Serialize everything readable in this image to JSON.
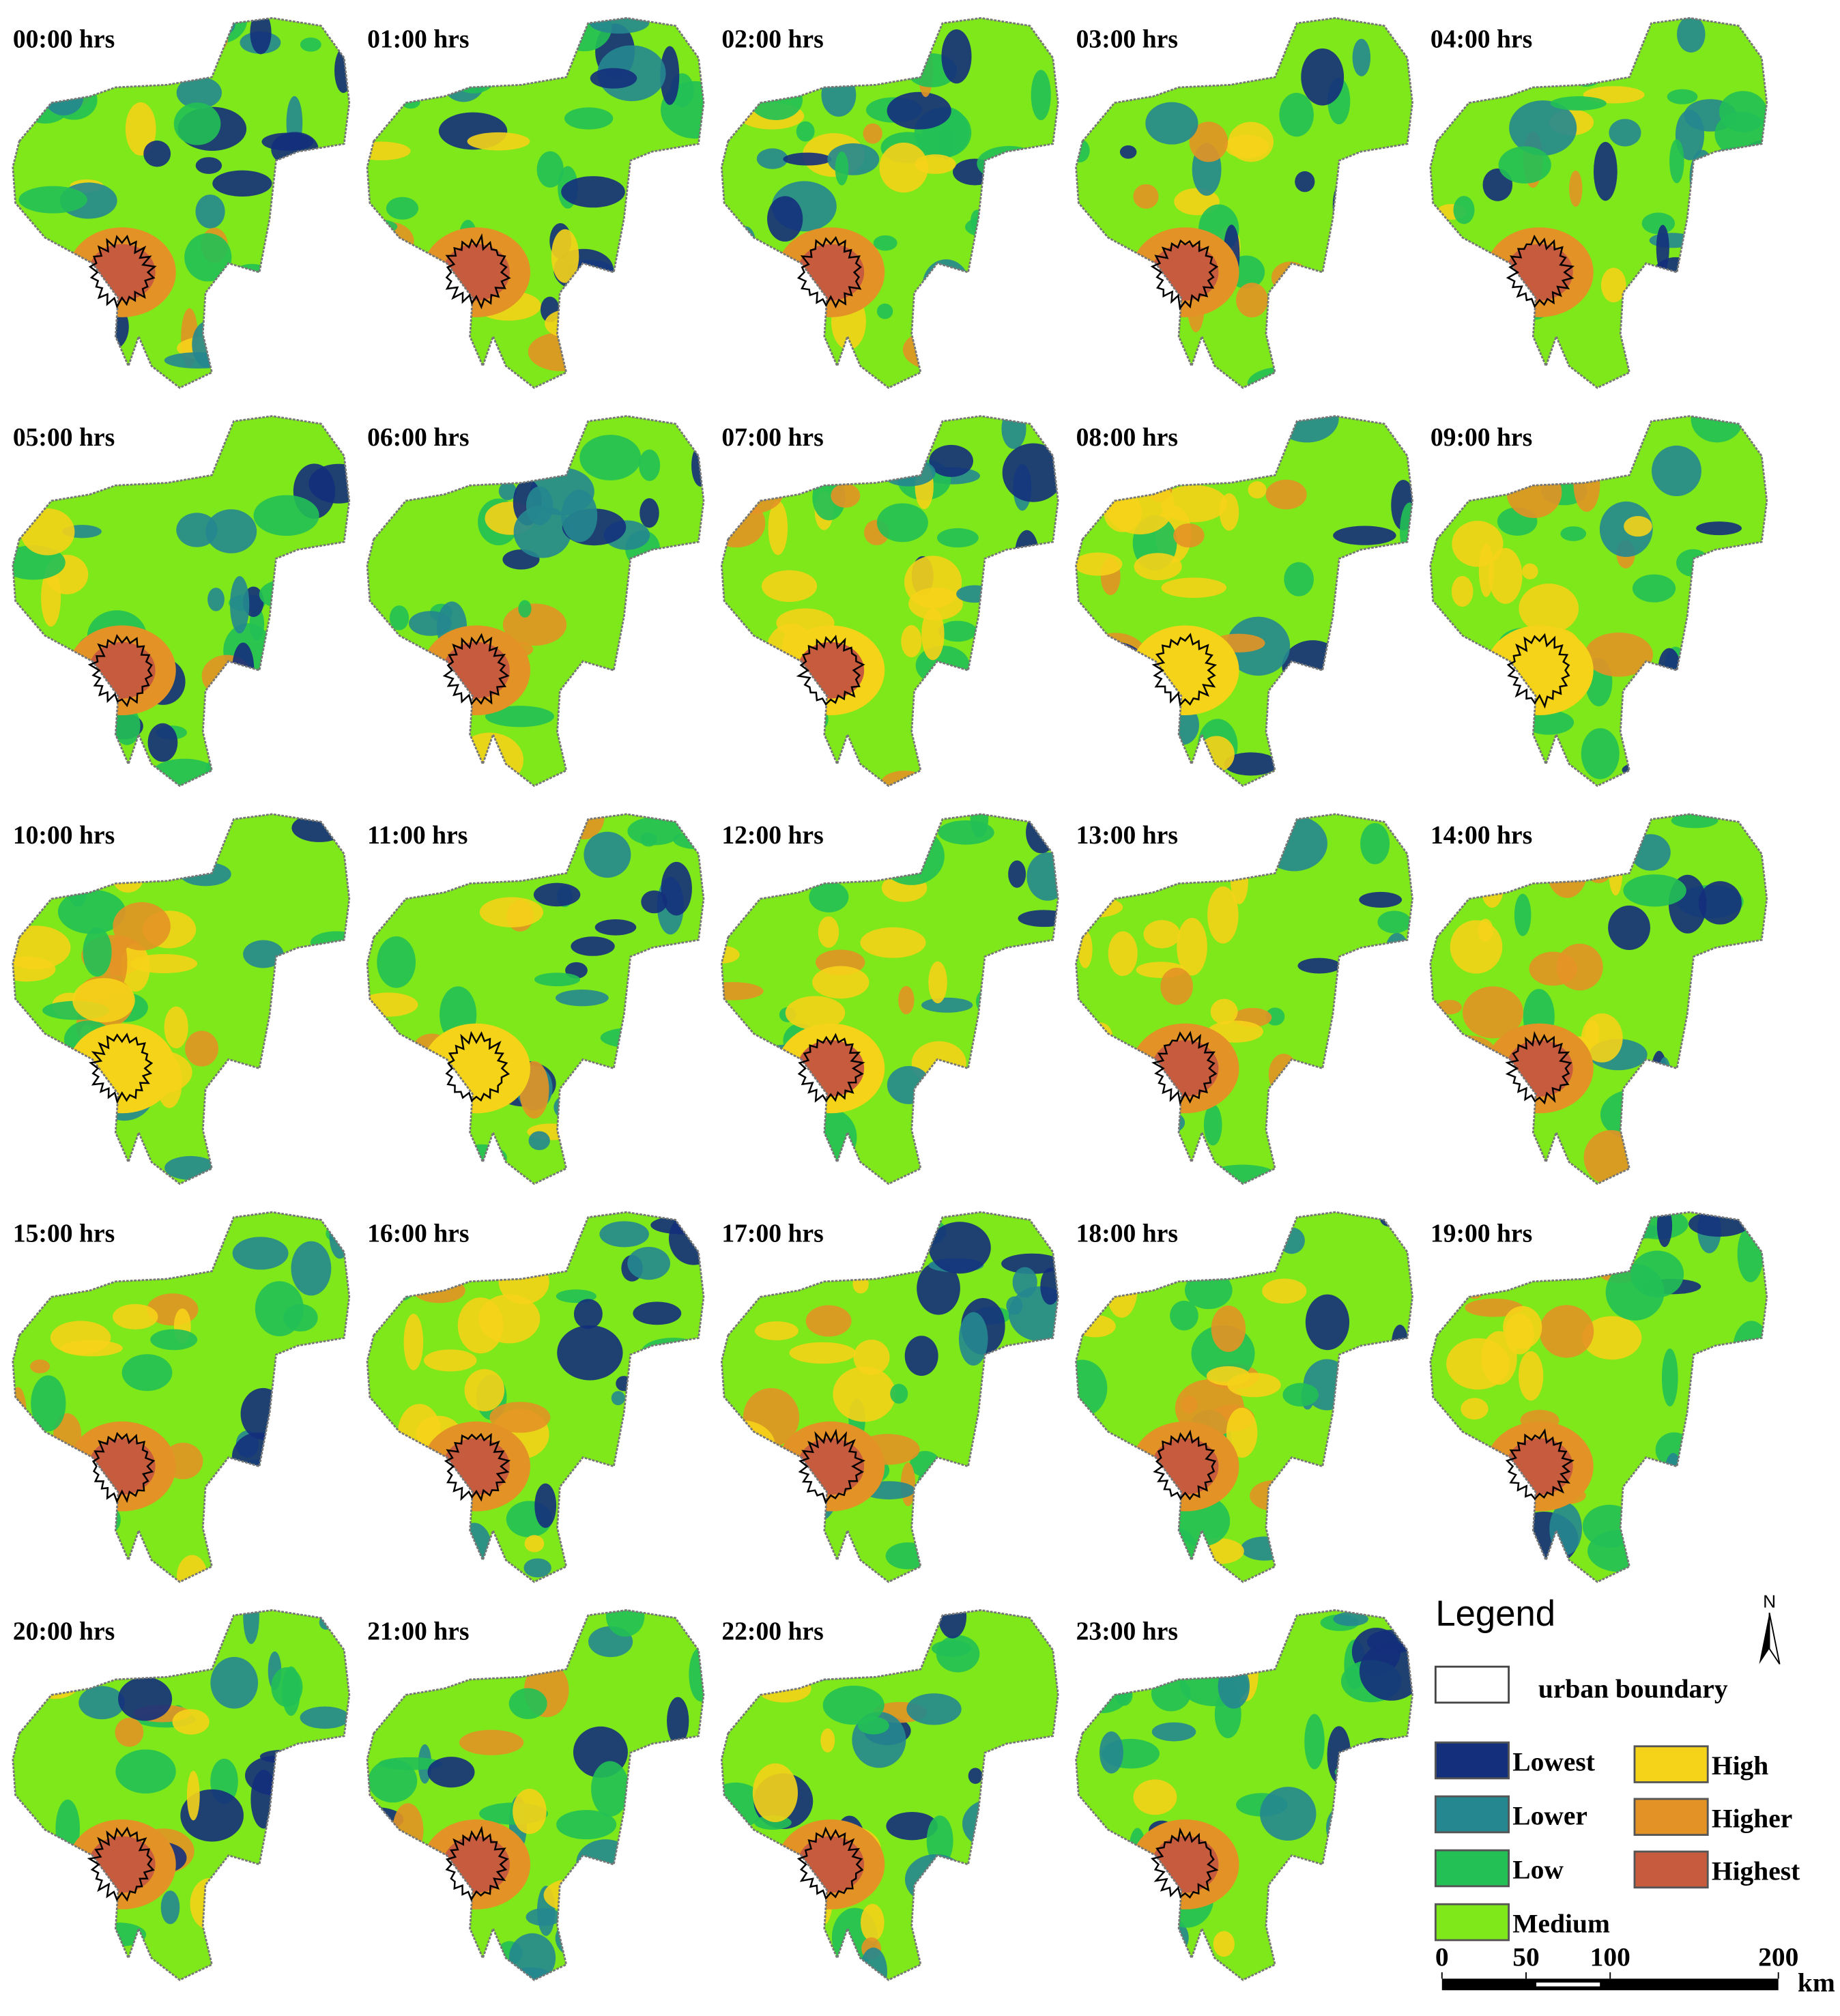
{
  "panels": [
    {
      "label": "00:00 hrs"
    },
    {
      "label": "01:00 hrs"
    },
    {
      "label": "02:00 hrs"
    },
    {
      "label": "03:00 hrs"
    },
    {
      "label": "04:00 hrs"
    },
    {
      "label": "05:00 hrs"
    },
    {
      "label": "06:00 hrs"
    },
    {
      "label": "07:00 hrs"
    },
    {
      "label": "08:00 hrs"
    },
    {
      "label": "09:00 hrs"
    },
    {
      "label": "10:00 hrs"
    },
    {
      "label": "11:00 hrs"
    },
    {
      "label": "12:00 hrs"
    },
    {
      "label": "13:00 hrs"
    },
    {
      "label": "14:00 hrs"
    },
    {
      "label": "15:00 hrs"
    },
    {
      "label": "16:00 hrs"
    },
    {
      "label": "17:00 hrs"
    },
    {
      "label": "18:00 hrs"
    },
    {
      "label": "19:00 hrs"
    },
    {
      "label": "20:00 hrs"
    },
    {
      "label": "21:00 hrs"
    },
    {
      "label": "22:00 hrs"
    },
    {
      "label": "23:00 hrs"
    }
  ],
  "legend": {
    "title": "Legend",
    "boundary_label": "urban boundary",
    "classes": [
      {
        "name": "Lowest",
        "color": "#142f7c"
      },
      {
        "name": "Lower",
        "color": "#25878f"
      },
      {
        "name": "Low",
        "color": "#22c055"
      },
      {
        "name": "Medium",
        "color": "#7ee81a"
      },
      {
        "name": "High",
        "color": "#f5d318"
      },
      {
        "name": "Higher",
        "color": "#e39325"
      },
      {
        "name": "Highest",
        "color": "#c75b3d"
      }
    ]
  },
  "scale_bar": {
    "ticks": [
      0,
      50,
      100,
      200
    ],
    "unit": "km"
  },
  "north_label": "N"
}
